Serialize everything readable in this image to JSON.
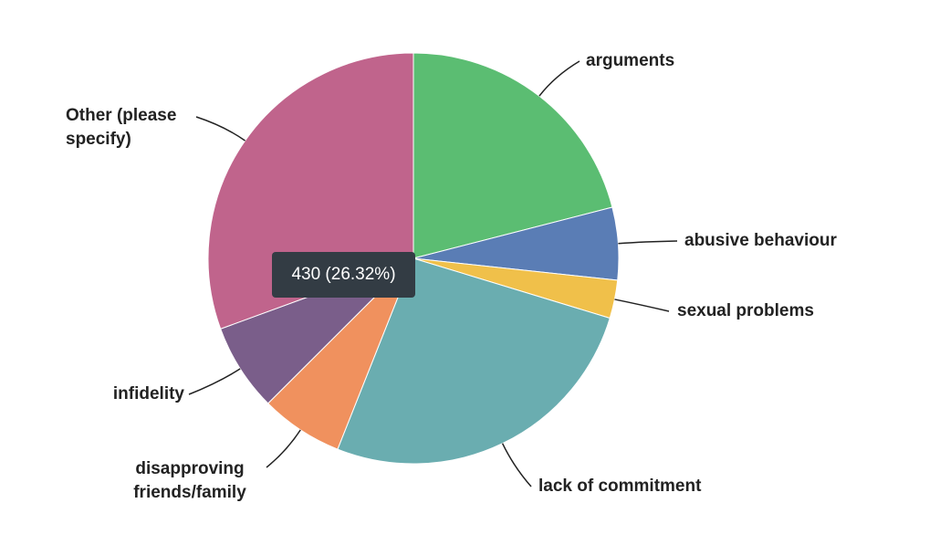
{
  "chart_data": {
    "type": "pie",
    "categories": [
      "arguments",
      "abusive behaviour",
      "sexual problems",
      "lack of commitment",
      "disapproving friends/family",
      "infidelity",
      "Other (please specify)"
    ],
    "values": [
      21.0,
      5.7,
      3.0,
      26.32,
      6.5,
      6.9,
      30.58
    ],
    "value_labels": [
      null,
      null,
      null,
      "430 (26.32%)",
      null,
      null,
      null
    ],
    "colors": [
      "#5bbd72",
      "#5a7db5",
      "#f0c04a",
      "#6aadb0",
      "#f0915e",
      "#7a5e8a",
      "#c0648c"
    ]
  }
}
